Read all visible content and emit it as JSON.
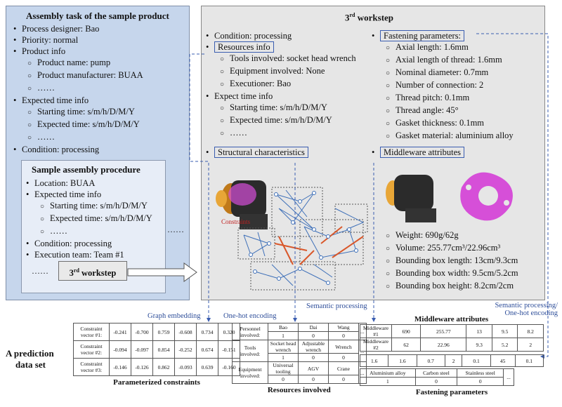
{
  "left_panel": {
    "title": "Assembly task of the sample product",
    "items": [
      {
        "level": 1,
        "text": "Process designer: Bao"
      },
      {
        "level": 1,
        "text": "Priority: normal"
      },
      {
        "level": 1,
        "text": "Product info"
      },
      {
        "level": 2,
        "text": "Product name: pump"
      },
      {
        "level": 2,
        "text": "Product manufacturer: BUAA"
      },
      {
        "level": 2,
        "text": "……"
      },
      {
        "level": 1,
        "text": "Expected time info"
      },
      {
        "level": 2,
        "text": "Starting time: s/m/h/D/M/Y"
      },
      {
        "level": 2,
        "text": "Expected time: s/m/h/D/M/Y"
      },
      {
        "level": 2,
        "text": "……"
      },
      {
        "level": 1,
        "text": "Condition: processing"
      }
    ],
    "procedure": {
      "title": "Sample assembly procedure",
      "items": [
        {
          "level": 1,
          "text": "Location: BUAA"
        },
        {
          "level": 1,
          "text": "Expected time info"
        },
        {
          "level": 2,
          "text": "Starting time: s/m/h/D/M/Y"
        },
        {
          "level": 2,
          "text": "Expected time: s/m/h/D/M/Y"
        },
        {
          "level": 2,
          "text": "……"
        },
        {
          "level": 1,
          "text": "Condition: processing"
        },
        {
          "level": 1,
          "text": "Execution team: Team #1"
        }
      ],
      "ellipsis_left": "……",
      "ellipsis_right": "……",
      "workstep_button": "3rd workstep"
    },
    "ellipsis_outside": "……"
  },
  "right_panel": {
    "title": "3rd workstep",
    "left_items": [
      {
        "level": 1,
        "text": "Condition: processing"
      },
      {
        "level": 1,
        "text": "Resources info",
        "boxed": true
      },
      {
        "level": 2,
        "text": "Tools involved: socket head wrench"
      },
      {
        "level": 2,
        "text": "Equipment involved: None"
      },
      {
        "level": 2,
        "text": "Executioner: Bao"
      },
      {
        "level": 1,
        "text": "Expect time info"
      },
      {
        "level": 2,
        "text": "Starting time: s/m/h/D/M/Y"
      },
      {
        "level": 2,
        "text": "Expected time: s/m/h/D/M/Y"
      },
      {
        "level": 2,
        "text": "……"
      }
    ],
    "fastening_header": "Fastening parameters:",
    "fastening_items": [
      "Axial length: 1.6mm",
      "Axial length of thread: 1.6mm",
      "Nominal diameter: 0.7mm",
      "Number of connection: 2",
      "Thread pitch: 0.1mm",
      "Thread angle: 45°",
      "Gasket thickness: 0.1mm",
      "Gasket material: aluminium alloy"
    ],
    "structural_header": "Structural characteristics",
    "constraints_label": "Constraints",
    "middleware_header": "Middleware attributes",
    "middleware_items": [
      "Weight: 690g/62g",
      "Volume: 255.77cm³/22.96cm³",
      "Bounding box length: 13cm/9.3cm",
      "Bounding box width: 9.5cm/5.2cm",
      "Bounding box height: 8.2cm/2cm"
    ]
  },
  "flow_labels": {
    "graph_embedding": "Graph embedding",
    "one_hot": "One-hot encoding",
    "semantic": "Semantic processing",
    "semantic_onehot_1": "Semantic processing/",
    "semantic_onehot_2": "One-hot encoding"
  },
  "dataset_label_1": "A prediction",
  "dataset_label_2": "data set",
  "constraints_table": {
    "caption": "Parameterized constraints",
    "rows": [
      {
        "label": "Constraint vector #1:",
        "values": [
          "-0.241",
          "-0.700",
          "0.759",
          "-0.608",
          "0.734",
          "0.320"
        ]
      },
      {
        "label": "Constraint vector #2:",
        "values": [
          "-0.094",
          "-0.097",
          "0.854",
          "-0.252",
          "0.674",
          "-0.151"
        ]
      },
      {
        "label": "Constraint vector #3:",
        "values": [
          "-0.146",
          "-0.126",
          "0.862",
          "-0.093",
          "0.639",
          "-0.160"
        ]
      }
    ]
  },
  "resources_table": {
    "caption": "Resources involved",
    "rows": [
      {
        "label": "Personnel involved:",
        "names": [
          "Bao",
          "Dai",
          "Wang"
        ],
        "codes": [
          "1",
          "0",
          "0"
        ]
      },
      {
        "label": "Tools involved:",
        "names": [
          "Socket head wrench",
          "Adjustable wrench",
          "Wrench"
        ],
        "codes": [
          "1",
          "0",
          "0"
        ]
      },
      {
        "label": "Equipment involved:",
        "names": [
          "Universal tooling",
          "AGV",
          "Crane"
        ],
        "codes": [
          "0",
          "0",
          "0"
        ]
      }
    ],
    "ellipsis": "..."
  },
  "middleware_table": {
    "title": "Middleware attributes",
    "rows": [
      {
        "label": "Middleware #1",
        "values": [
          "690",
          "255.77",
          "13",
          "9.5",
          "8.2"
        ]
      },
      {
        "label": "Middleware #2",
        "values": [
          "62",
          "22.96",
          "9.3",
          "5.2",
          "2"
        ]
      }
    ],
    "ellipsis": "..."
  },
  "fastening_table": {
    "caption": "Fastening parameters",
    "values": [
      "1.6",
      "1.6",
      "0.7",
      "2",
      "0.1",
      "45",
      "0.1"
    ],
    "materials": [
      "Aluminium alloy",
      "Carbon steel",
      "Stainless steel"
    ],
    "material_codes": [
      "1",
      "0",
      "0"
    ],
    "ellipsis": "..."
  },
  "colors": {
    "left_panel": "#c6d6ec",
    "right_panel": "#e6e6e6",
    "box_border": "#3a5db0",
    "arrow": "#3a5db0",
    "graph_orange": "#d9572a",
    "graph_blue": "#3d6fb8",
    "part_pink": "#d64fd8"
  }
}
